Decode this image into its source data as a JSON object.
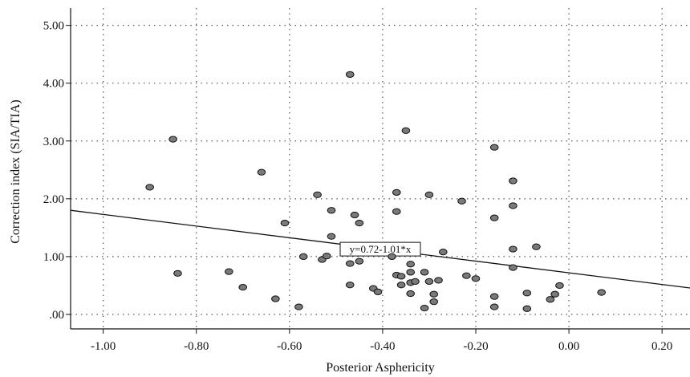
{
  "chart_data": {
    "type": "scatter",
    "xlabel": "Posterior Asphericity",
    "ylabel": "Correction index (SIA/TIA)",
    "xlim": [
      -1.07,
      0.26
    ],
    "ylim": [
      -0.25,
      5.3
    ],
    "x_ticks": [
      "-1.00",
      "-0.80",
      "-0.60",
      "-0.40",
      "-0.20",
      "0.00",
      "0.20"
    ],
    "x_tick_values": [
      -1.0,
      -0.8,
      -0.6,
      -0.4,
      -0.2,
      0.0,
      0.2
    ],
    "y_ticks": [
      ".00",
      "1.00",
      "2.00",
      "3.00",
      "4.00",
      "5.00"
    ],
    "y_tick_values": [
      0,
      1,
      2,
      3,
      4,
      5
    ],
    "grid": true,
    "marker_color": "#7a7a7a",
    "fit_line": {
      "intercept": 0.72,
      "slope": -1.01,
      "label": "y=0.72-1.01*x"
    },
    "points": [
      {
        "x": -0.9,
        "y": 2.2
      },
      {
        "x": -0.85,
        "y": 3.03
      },
      {
        "x": -0.84,
        "y": 0.71
      },
      {
        "x": -0.73,
        "y": 0.74
      },
      {
        "x": -0.7,
        "y": 0.47
      },
      {
        "x": -0.66,
        "y": 2.46
      },
      {
        "x": -0.63,
        "y": 0.27
      },
      {
        "x": -0.61,
        "y": 1.58
      },
      {
        "x": -0.58,
        "y": 0.13
      },
      {
        "x": -0.57,
        "y": 1.0
      },
      {
        "x": -0.54,
        "y": 2.07
      },
      {
        "x": -0.53,
        "y": 0.95
      },
      {
        "x": -0.52,
        "y": 1.01
      },
      {
        "x": -0.51,
        "y": 1.8
      },
      {
        "x": -0.51,
        "y": 1.35
      },
      {
        "x": -0.47,
        "y": 4.15
      },
      {
        "x": -0.47,
        "y": 0.88
      },
      {
        "x": -0.47,
        "y": 0.51
      },
      {
        "x": -0.46,
        "y": 1.72
      },
      {
        "x": -0.45,
        "y": 1.58
      },
      {
        "x": -0.45,
        "y": 0.92
      },
      {
        "x": -0.42,
        "y": 0.45
      },
      {
        "x": -0.41,
        "y": 0.39
      },
      {
        "x": -0.38,
        "y": 1.0
      },
      {
        "x": -0.37,
        "y": 2.11
      },
      {
        "x": -0.37,
        "y": 1.78
      },
      {
        "x": -0.37,
        "y": 0.68
      },
      {
        "x": -0.36,
        "y": 0.66
      },
      {
        "x": -0.36,
        "y": 0.51
      },
      {
        "x": -0.35,
        "y": 3.18
      },
      {
        "x": -0.34,
        "y": 0.87
      },
      {
        "x": -0.34,
        "y": 0.73
      },
      {
        "x": -0.34,
        "y": 0.55
      },
      {
        "x": -0.34,
        "y": 0.36
      },
      {
        "x": -0.33,
        "y": 0.57
      },
      {
        "x": -0.31,
        "y": 0.73
      },
      {
        "x": -0.31,
        "y": 0.11
      },
      {
        "x": -0.3,
        "y": 2.07
      },
      {
        "x": -0.3,
        "y": 0.57
      },
      {
        "x": -0.29,
        "y": 0.35
      },
      {
        "x": -0.29,
        "y": 0.22
      },
      {
        "x": -0.28,
        "y": 0.59
      },
      {
        "x": -0.27,
        "y": 1.08
      },
      {
        "x": -0.23,
        "y": 1.96
      },
      {
        "x": -0.22,
        "y": 0.67
      },
      {
        "x": -0.2,
        "y": 0.62
      },
      {
        "x": -0.16,
        "y": 2.89
      },
      {
        "x": -0.16,
        "y": 1.67
      },
      {
        "x": -0.16,
        "y": 0.31
      },
      {
        "x": -0.16,
        "y": 0.13
      },
      {
        "x": -0.12,
        "y": 2.31
      },
      {
        "x": -0.12,
        "y": 1.88
      },
      {
        "x": -0.12,
        "y": 1.13
      },
      {
        "x": -0.12,
        "y": 0.81
      },
      {
        "x": -0.09,
        "y": 0.37
      },
      {
        "x": -0.09,
        "y": 0.1
      },
      {
        "x": -0.07,
        "y": 1.17
      },
      {
        "x": -0.04,
        "y": 0.26
      },
      {
        "x": -0.03,
        "y": 0.35
      },
      {
        "x": -0.02,
        "y": 0.5
      },
      {
        "x": 0.07,
        "y": 0.38
      }
    ]
  }
}
